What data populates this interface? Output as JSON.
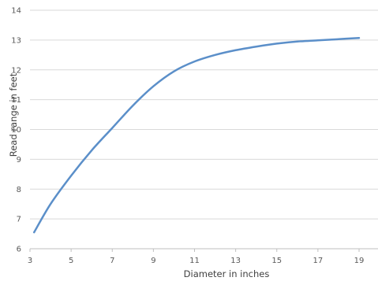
{
  "chart_data": {
    "type": "line",
    "xlabel": "Diameter in inches",
    "ylabel": "Read range in feet",
    "xlim": [
      3,
      20
    ],
    "ylim": [
      6,
      14
    ],
    "x_ticks": [
      "3",
      "5",
      "7",
      "9",
      "11",
      "13",
      "15",
      "17",
      "19"
    ],
    "y_ticks": [
      "6",
      "7",
      "8",
      "9",
      "10",
      "11",
      "12",
      "13",
      "14"
    ],
    "grid": "horizontal",
    "series": [
      {
        "color": "#5b8fc9",
        "x": [
          3.2,
          4,
          5,
          6,
          7,
          8,
          9,
          10,
          11,
          12,
          13,
          14,
          15,
          16,
          17,
          18,
          19
        ],
        "y": [
          6.55,
          7.5,
          8.45,
          9.3,
          10.05,
          10.8,
          11.45,
          11.95,
          12.28,
          12.5,
          12.66,
          12.78,
          12.88,
          12.95,
          12.99,
          13.03,
          13.07
        ]
      }
    ]
  }
}
